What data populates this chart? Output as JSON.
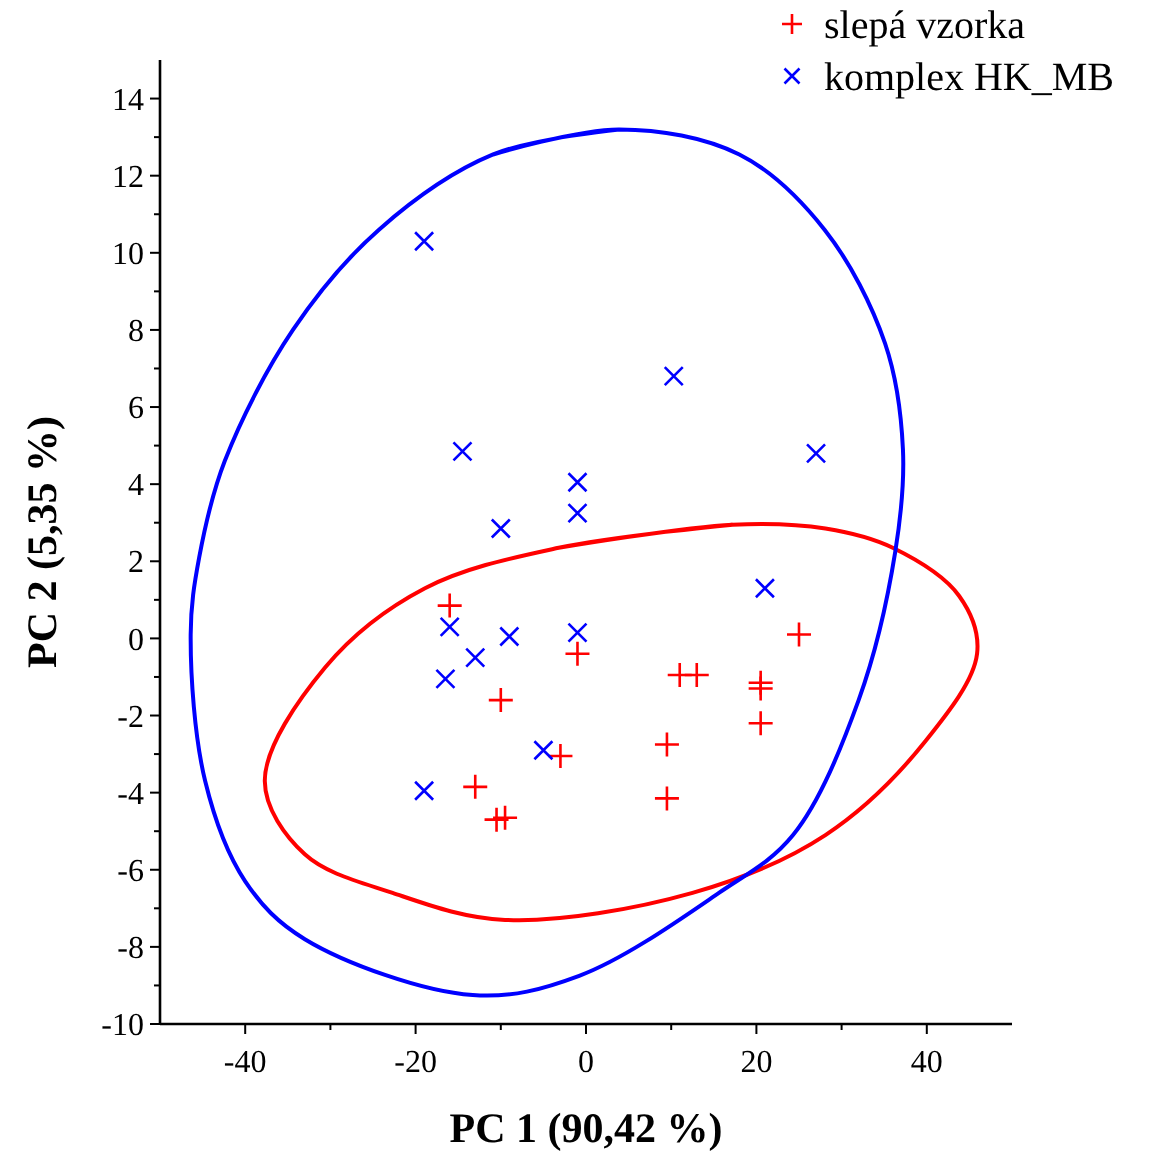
{
  "chart_data": {
    "type": "scatter",
    "xlabel": "PC 1 (90,42 %)",
    "ylabel": "PC 2 (5,35 %)",
    "xlim": [
      -50,
      50
    ],
    "ylim": [
      -10,
      15
    ],
    "xticks": [
      -40,
      {
        "value": -30,
        "label": null
      },
      -20,
      {
        "value": -10,
        "label": null
      },
      0,
      {
        "value": 10,
        "label": null
      },
      20,
      {
        "value": 30,
        "label": null
      },
      40
    ],
    "yticks": [
      -10,
      {
        "value": -9,
        "label": null
      },
      -8,
      {
        "value": -7,
        "label": null
      },
      -6,
      {
        "value": -5,
        "label": null
      },
      -4,
      {
        "value": -3,
        "label": null
      },
      -2,
      {
        "value": -1,
        "label": null
      },
      0,
      {
        "value": 1,
        "label": null
      },
      2,
      {
        "value": 3,
        "label": null
      },
      4,
      {
        "value": 5,
        "label": null
      },
      6,
      {
        "value": 7,
        "label": null
      },
      8,
      {
        "value": 9,
        "label": null
      },
      10,
      {
        "value": 11,
        "label": null
      },
      12,
      {
        "value": 13,
        "label": null
      },
      14
    ],
    "legend": "top right",
    "grid": false,
    "series": [
      {
        "name": "slepá vzorka",
        "color": "#ff0000",
        "marker": "plus",
        "x": [
          -16,
          -1,
          -10,
          11,
          13,
          20.5,
          20.5,
          25,
          20.5,
          -3,
          9.5,
          -13,
          9.5,
          -10.5,
          -9.5
        ],
        "values": [
          0.85,
          -0.4,
          -1.6,
          -0.95,
          -0.95,
          -1.15,
          -1.3,
          0.1,
          -2.2,
          -3.05,
          -2.75,
          -3.85,
          -4.15,
          -4.7,
          -4.65
        ]
      },
      {
        "name": "komplex HK_MB",
        "color": "#0000ff",
        "marker": "cross",
        "x": [
          -19,
          10.3,
          -14.5,
          27,
          -10,
          -1,
          -1,
          21,
          -1,
          -9,
          -16,
          -13,
          -16.5,
          -5,
          -19
        ],
        "values": [
          10.3,
          6.8,
          4.85,
          4.8,
          2.85,
          4.05,
          3.25,
          1.3,
          0.15,
          0.05,
          0.3,
          -0.5,
          -1.05,
          -2.9,
          -3.95
        ]
      },
      {
        "type": "line",
        "color": "#ff0000",
        "x": [
          17.2,
          28.1,
          36,
          43.8,
          45.9,
          39.9,
          28.1,
          12.5,
          -9.5,
          -22.7,
          -33,
          -37.7,
          -30.6,
          -18.9,
          -3.2
        ],
        "values": [
          2.95,
          2.85,
          2.35,
          1.1,
          -0.4,
          -2.65,
          -5.1,
          -6.6,
          -7.3,
          -6.6,
          -5.6,
          -3.7,
          -0.75,
          1.3,
          2.35
        ]
      },
      {
        "type": "line",
        "color": "#0000ff",
        "x": [
          3.9,
          18,
          28,
          35.1,
          37.2,
          36.3,
          32,
          24.3,
          15.6,
          -0.8,
          -13.3,
          -33,
          -40,
          -44.7,
          -46.4,
          -45.4,
          -42.4,
          -34.4,
          -24.3,
          -10.9
        ],
        "values": [
          13.2,
          12.55,
          10.6,
          7.65,
          4.9,
          2.25,
          -1.6,
          -5.1,
          -6.6,
          -8.75,
          -9.25,
          -7.8,
          -6.3,
          -3.7,
          0.1,
          2.1,
          4.6,
          8.0,
          10.6,
          12.55
        ]
      }
    ]
  }
}
